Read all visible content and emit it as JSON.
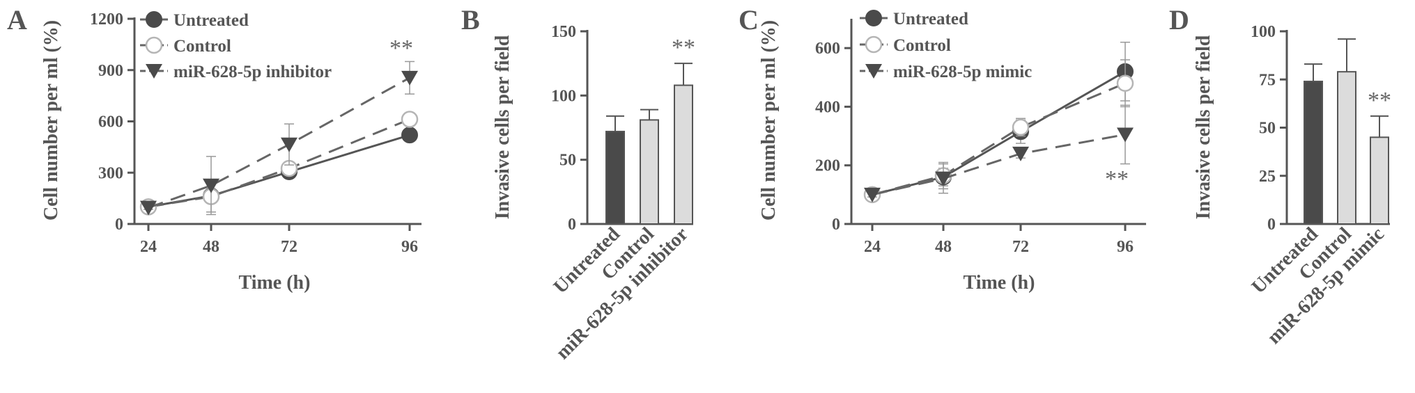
{
  "chart_data": [
    {
      "panel": "A",
      "type": "line",
      "ylabel": "Cell number per ml (%)",
      "xlabel": "Time (h)",
      "x": [
        "24",
        "48",
        "72",
        "96"
      ],
      "ylim": [
        0,
        1200
      ],
      "yticks": [
        "0",
        "300",
        "600",
        "900",
        "1200"
      ],
      "series": [
        {
          "name": "Untreated",
          "marker": "filled-circle",
          "dash": "solid",
          "values": [
            100,
            165,
            305,
            520
          ],
          "errors": [
            10,
            20,
            20,
            0
          ]
        },
        {
          "name": "Control",
          "marker": "open-circle",
          "dash": "dash",
          "values": [
            100,
            160,
            325,
            612
          ],
          "errors": [
            15,
            90,
            25,
            0
          ]
        },
        {
          "name": "miR-628-5p inhibitor",
          "marker": "down-triangle",
          "dash": "dash",
          "values": [
            95,
            225,
            465,
            855
          ],
          "errors": [
            10,
            170,
            120,
            95
          ]
        }
      ],
      "annotations": [
        {
          "text": "**",
          "x": "96"
        }
      ],
      "legend": "top-left"
    },
    {
      "panel": "B",
      "type": "bar",
      "ylabel": "Invasive cells per field",
      "categories": [
        "Untreated",
        "Control",
        "miR-628-5p inhibitor"
      ],
      "values": [
        72,
        81,
        108
      ],
      "errors": [
        12,
        8,
        17
      ],
      "colors": [
        "#4a4a4a",
        "#dcdcdc",
        "#dcdcdc"
      ],
      "ylim": [
        0,
        150
      ],
      "yticks": [
        "0",
        "50",
        "100",
        "150"
      ],
      "annotations": [
        {
          "text": "**",
          "category": "miR-628-5p inhibitor"
        }
      ]
    },
    {
      "panel": "C",
      "type": "line",
      "ylabel": "Cell number per ml (%)",
      "xlabel": "Time (h)",
      "x": [
        "24",
        "48",
        "72",
        "96"
      ],
      "ylim": [
        0,
        700
      ],
      "yticks": [
        "0",
        "200",
        "400",
        "600"
      ],
      "series": [
        {
          "name": "Untreated",
          "marker": "filled-circle",
          "dash": "solid",
          "values": [
            100,
            160,
            315,
            520
          ],
          "errors": [
            10,
            30,
            40,
            100
          ]
        },
        {
          "name": "Control",
          "marker": "open-circle",
          "dash": "dash",
          "values": [
            100,
            165,
            330,
            480
          ],
          "errors": [
            12,
            45,
            30,
            80
          ]
        },
        {
          "name": "miR-628-5p  mimic",
          "marker": "down-triangle",
          "dash": "dash",
          "values": [
            100,
            155,
            240,
            305
          ],
          "errors": [
            8,
            50,
            15,
            100
          ]
        }
      ],
      "annotations": [
        {
          "text": "**",
          "x": "96",
          "position": "below"
        }
      ],
      "legend": "top-left"
    },
    {
      "panel": "D",
      "type": "bar",
      "ylabel": "Invasive cells per field",
      "categories": [
        "Untreated",
        "Control",
        "miR-628-5p mimic"
      ],
      "values": [
        74,
        79,
        45
      ],
      "errors": [
        9,
        17,
        11
      ],
      "colors": [
        "#4a4a4a",
        "#dcdcdc",
        "#dcdcdc"
      ],
      "ylim": [
        0,
        100
      ],
      "yticks": [
        "0",
        "25",
        "50",
        "75",
        "100"
      ],
      "annotations": [
        {
          "text": "**",
          "category": "miR-628-5p mimic"
        }
      ]
    }
  ]
}
